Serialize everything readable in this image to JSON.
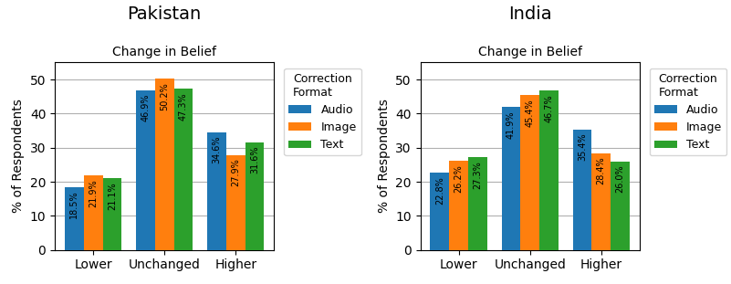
{
  "chart_data": [
    {
      "type": "bar",
      "title": "Pakistan",
      "subtitle": "Change in Belief",
      "categories": [
        "Lower",
        "Unchanged",
        "Higher"
      ],
      "series": [
        {
          "name": "Audio",
          "values": [
            18.5,
            46.9,
            34.6
          ],
          "value_labels": [
            "18.5%",
            "46.9%",
            "34.6%"
          ]
        },
        {
          "name": "Image",
          "values": [
            21.9,
            50.2,
            27.9
          ],
          "value_labels": [
            "21.9%",
            "50.2%",
            "27.9%"
          ]
        },
        {
          "name": "Text",
          "values": [
            21.1,
            47.3,
            31.6
          ],
          "value_labels": [
            "21.1%",
            "47.3%",
            "31.6%"
          ]
        }
      ],
      "y_label": "% of Respondents",
      "legend_title": "Correction\nFormat",
      "ylim": [
        0,
        55
      ],
      "yticks": [
        0,
        10,
        20,
        30,
        40,
        50
      ],
      "grid": true,
      "legend": "upper left",
      "data_labels": true
    },
    {
      "type": "bar",
      "title": "India",
      "subtitle": "Change in Belief",
      "categories": [
        "Lower",
        "Unchanged",
        "Higher"
      ],
      "series": [
        {
          "name": "Audio",
          "values": [
            22.8,
            41.9,
            35.4
          ],
          "value_labels": [
            "22.8%",
            "41.9%",
            "35.4%"
          ]
        },
        {
          "name": "Image",
          "values": [
            26.2,
            45.4,
            28.4
          ],
          "value_labels": [
            "26.2%",
            "45.4%",
            "28.4%"
          ]
        },
        {
          "name": "Text",
          "values": [
            27.3,
            46.7,
            26.0
          ],
          "value_labels": [
            "27.3%",
            "46.7%",
            "26.0%"
          ]
        }
      ],
      "y_label": "% of Respondents",
      "legend_title": "Correction\nFormat",
      "ylim": [
        0,
        55
      ],
      "yticks": [
        0,
        10,
        20,
        30,
        40,
        50
      ],
      "grid": true,
      "legend": "upper left",
      "data_labels": true
    }
  ]
}
